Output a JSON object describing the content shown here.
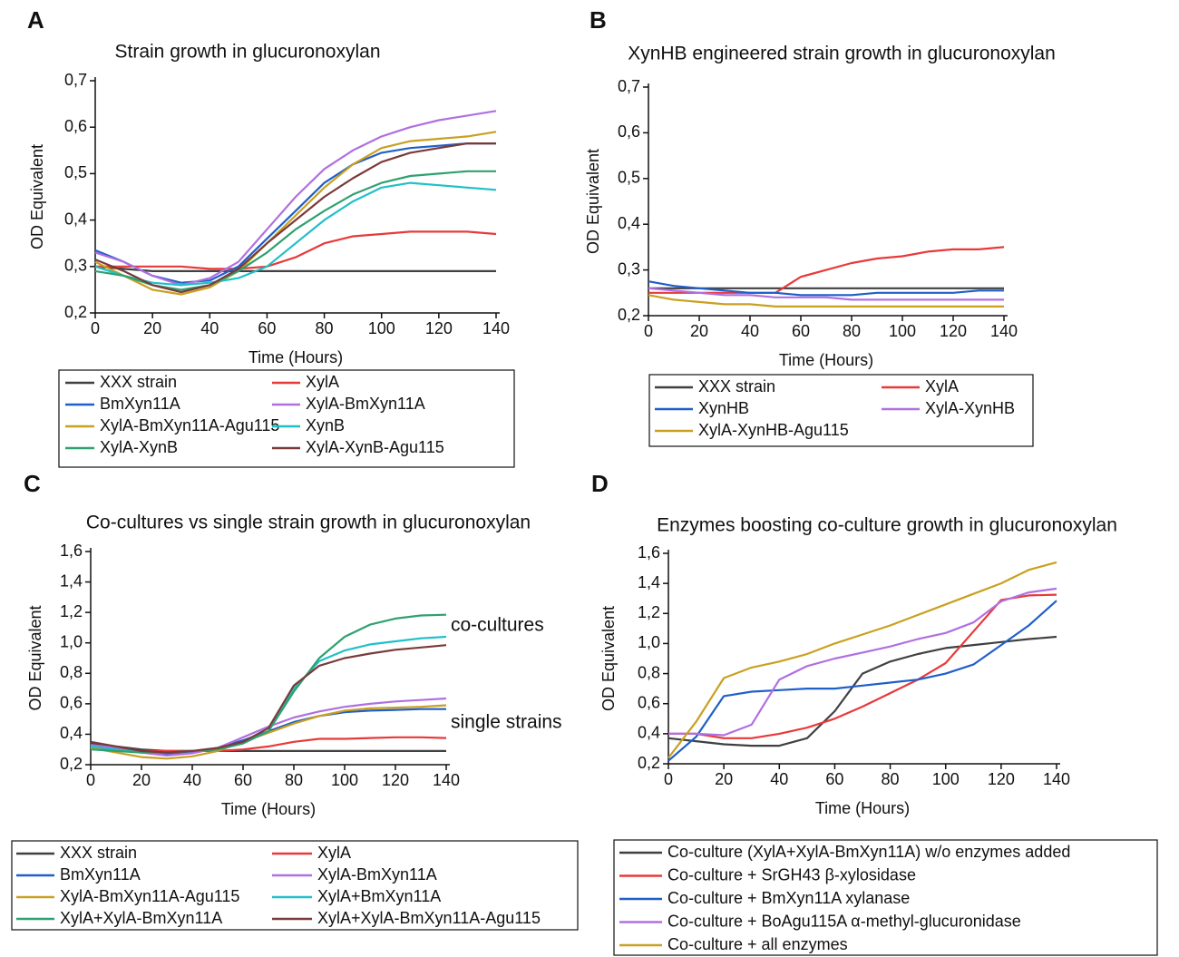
{
  "chart_data": [
    {
      "type": "line",
      "panel_label": "A",
      "title": "Strain growth in glucuronoxylan",
      "x_label": "Time (Hours)",
      "y_label": "OD Equivalent",
      "x": [
        0,
        10,
        20,
        30,
        40,
        50,
        60,
        70,
        80,
        90,
        100,
        110,
        120,
        130,
        140
      ],
      "xlim": [
        0,
        140
      ],
      "xticks": [
        0,
        20,
        40,
        60,
        80,
        100,
        120,
        140
      ],
      "ylim": [
        0.2,
        0.7
      ],
      "yticks": [
        {
          "value": 0.2,
          "label": "0,2"
        },
        {
          "value": 0.3,
          "label": "0,3"
        },
        {
          "value": 0.4,
          "label": "0,4"
        },
        {
          "value": 0.5,
          "label": "0,5"
        },
        {
          "value": 0.6,
          "label": "0,6"
        },
        {
          "value": 0.7,
          "label": "0,7"
        }
      ],
      "series": [
        {
          "name": "XXX strain",
          "color": "#404040",
          "values": [
            0.3,
            0.295,
            0.29,
            0.29,
            0.29,
            0.29,
            0.29,
            0.29,
            0.29,
            0.29,
            0.29,
            0.29,
            0.29,
            0.29,
            0.29
          ]
        },
        {
          "name": "XylA",
          "color": "#e8393a",
          "values": [
            0.3,
            0.3,
            0.3,
            0.3,
            0.295,
            0.295,
            0.3,
            0.32,
            0.35,
            0.365,
            0.37,
            0.375,
            0.375,
            0.375,
            0.37
          ]
        },
        {
          "name": "BmXyn11A",
          "color": "#1f5fc8",
          "values": [
            0.335,
            0.31,
            0.28,
            0.265,
            0.27,
            0.3,
            0.36,
            0.42,
            0.48,
            0.52,
            0.545,
            0.555,
            0.56,
            0.565,
            0.565
          ]
        },
        {
          "name": "XylA-BmXyn11A",
          "color": "#b070e0",
          "values": [
            0.33,
            0.31,
            0.28,
            0.26,
            0.275,
            0.31,
            0.38,
            0.45,
            0.51,
            0.55,
            0.58,
            0.6,
            0.615,
            0.625,
            0.635
          ]
        },
        {
          "name": "XylA-BmXyn11A-Agu115",
          "color": "#c9a020",
          "values": [
            0.31,
            0.28,
            0.25,
            0.24,
            0.255,
            0.29,
            0.35,
            0.41,
            0.47,
            0.52,
            0.555,
            0.57,
            0.575,
            0.58,
            0.59
          ]
        },
        {
          "name": "XynB",
          "color": "#20c0c8",
          "values": [
            0.3,
            0.28,
            0.265,
            0.26,
            0.265,
            0.275,
            0.3,
            0.35,
            0.4,
            0.44,
            0.47,
            0.48,
            0.475,
            0.47,
            0.465
          ]
        },
        {
          "name": "XylA-XynB",
          "color": "#30a070",
          "values": [
            0.29,
            0.28,
            0.26,
            0.25,
            0.26,
            0.29,
            0.33,
            0.38,
            0.42,
            0.455,
            0.48,
            0.495,
            0.5,
            0.505,
            0.505
          ]
        },
        {
          "name": "XylA-XynB-Agu115",
          "color": "#7a3a3a",
          "values": [
            0.315,
            0.29,
            0.26,
            0.245,
            0.26,
            0.295,
            0.35,
            0.4,
            0.45,
            0.49,
            0.525,
            0.545,
            0.555,
            0.565,
            0.565
          ]
        }
      ]
    },
    {
      "type": "line",
      "panel_label": "B",
      "title": "XynHB engineered strain growth in glucuronoxylan",
      "x_label": "Time (Hours)",
      "y_label": "OD Equivalent",
      "x": [
        0,
        10,
        20,
        30,
        40,
        50,
        60,
        70,
        80,
        90,
        100,
        110,
        120,
        130,
        140
      ],
      "xlim": [
        0,
        140
      ],
      "xticks": [
        0,
        20,
        40,
        60,
        80,
        100,
        120,
        140
      ],
      "ylim": [
        0.2,
        0.7
      ],
      "yticks": [
        {
          "value": 0.2,
          "label": "0,2"
        },
        {
          "value": 0.3,
          "label": "0,3"
        },
        {
          "value": 0.4,
          "label": "0,4"
        },
        {
          "value": 0.5,
          "label": "0,5"
        },
        {
          "value": 0.6,
          "label": "0,6"
        },
        {
          "value": 0.7,
          "label": "0,7"
        }
      ],
      "series": [
        {
          "name": "XXX strain",
          "color": "#404040",
          "values": [
            0.26,
            0.26,
            0.26,
            0.26,
            0.26,
            0.26,
            0.26,
            0.26,
            0.26,
            0.26,
            0.26,
            0.26,
            0.26,
            0.26,
            0.26
          ]
        },
        {
          "name": "XylA",
          "color": "#e8393a",
          "values": [
            0.25,
            0.25,
            0.25,
            0.25,
            0.25,
            0.25,
            0.285,
            0.3,
            0.315,
            0.325,
            0.33,
            0.34,
            0.345,
            0.345,
            0.35
          ]
        },
        {
          "name": "XynHB",
          "color": "#1f5fc8",
          "values": [
            0.275,
            0.265,
            0.26,
            0.255,
            0.25,
            0.25,
            0.245,
            0.245,
            0.245,
            0.25,
            0.25,
            0.25,
            0.25,
            0.255,
            0.255
          ]
        },
        {
          "name": "XylA-XynHB",
          "color": "#b070e0",
          "values": [
            0.26,
            0.255,
            0.25,
            0.245,
            0.245,
            0.24,
            0.24,
            0.24,
            0.235,
            0.235,
            0.235,
            0.235,
            0.235,
            0.235,
            0.235
          ]
        },
        {
          "name": "XylA-XynHB-Agu115",
          "color": "#c9a020",
          "values": [
            0.245,
            0.235,
            0.23,
            0.225,
            0.225,
            0.22,
            0.22,
            0.22,
            0.22,
            0.22,
            0.22,
            0.22,
            0.22,
            0.22,
            0.22
          ]
        }
      ]
    },
    {
      "type": "line",
      "panel_label": "C",
      "title": "Co-cultures vs single strain growth in glucuronoxylan",
      "x_label": "Time (Hours)",
      "y_label": "OD Equivalent",
      "annotations": [
        "co-cultures",
        "single strains"
      ],
      "x": [
        0,
        10,
        20,
        30,
        40,
        50,
        60,
        70,
        80,
        90,
        100,
        110,
        120,
        130,
        140
      ],
      "xlim": [
        0,
        140
      ],
      "xticks": [
        0,
        20,
        40,
        60,
        80,
        100,
        120,
        140
      ],
      "ylim": [
        0.2,
        1.6
      ],
      "yticks": [
        {
          "value": 0.2,
          "label": "0,2"
        },
        {
          "value": 0.4,
          "label": "0,4"
        },
        {
          "value": 0.6,
          "label": "0,6"
        },
        {
          "value": 0.8,
          "label": "0,8"
        },
        {
          "value": 1.0,
          "label": "1,0"
        },
        {
          "value": 1.2,
          "label": "1,2"
        },
        {
          "value": 1.4,
          "label": "1,4"
        },
        {
          "value": 1.6,
          "label": "1,6"
        }
      ],
      "series": [
        {
          "name": "XXX strain",
          "color": "#404040",
          "values": [
            0.34,
            0.32,
            0.3,
            0.29,
            0.29,
            0.29,
            0.29,
            0.29,
            0.29,
            0.29,
            0.29,
            0.29,
            0.29,
            0.29,
            0.29
          ]
        },
        {
          "name": "XylA",
          "color": "#e8393a",
          "values": [
            0.31,
            0.3,
            0.29,
            0.29,
            0.29,
            0.29,
            0.3,
            0.32,
            0.35,
            0.37,
            0.37,
            0.375,
            0.38,
            0.38,
            0.375
          ]
        },
        {
          "name": "BmXyn11A",
          "color": "#1f5fc8",
          "values": [
            0.33,
            0.31,
            0.28,
            0.27,
            0.28,
            0.31,
            0.36,
            0.42,
            0.48,
            0.52,
            0.545,
            0.555,
            0.56,
            0.565,
            0.565
          ]
        },
        {
          "name": "XylA-BmXyn11A",
          "color": "#b070e0",
          "values": [
            0.33,
            0.31,
            0.28,
            0.26,
            0.275,
            0.31,
            0.38,
            0.45,
            0.51,
            0.55,
            0.58,
            0.6,
            0.615,
            0.625,
            0.635
          ]
        },
        {
          "name": "XylA-BmXyn11A-Agu115",
          "color": "#c9a020",
          "values": [
            0.31,
            0.28,
            0.25,
            0.24,
            0.255,
            0.29,
            0.35,
            0.41,
            0.47,
            0.52,
            0.555,
            0.57,
            0.575,
            0.58,
            0.59
          ]
        },
        {
          "name": "XylA+BmXyn11A",
          "color": "#20c0c8",
          "values": [
            0.32,
            0.3,
            0.28,
            0.28,
            0.29,
            0.3,
            0.34,
            0.42,
            0.7,
            0.88,
            0.95,
            0.99,
            1.01,
            1.03,
            1.04
          ]
        },
        {
          "name": "XylA+XylA-BmXyn11A",
          "color": "#30a070",
          "values": [
            0.3,
            0.29,
            0.28,
            0.28,
            0.29,
            0.3,
            0.34,
            0.42,
            0.68,
            0.9,
            1.04,
            1.12,
            1.16,
            1.18,
            1.185
          ]
        },
        {
          "name": "XylA+XylA-BmXyn11A-Agu115",
          "color": "#7a3a3a",
          "values": [
            0.35,
            0.32,
            0.29,
            0.28,
            0.29,
            0.31,
            0.35,
            0.44,
            0.72,
            0.85,
            0.9,
            0.93,
            0.955,
            0.97,
            0.985
          ]
        }
      ]
    },
    {
      "type": "line",
      "panel_label": "D",
      "title": "Enzymes boosting co-culture growth in glucuronoxylan",
      "x_label": "Time (Hours)",
      "y_label": "OD Equivalent",
      "x": [
        0,
        10,
        20,
        30,
        40,
        50,
        60,
        70,
        80,
        90,
        100,
        110,
        120,
        130,
        140
      ],
      "xlim": [
        0,
        140
      ],
      "xticks": [
        0,
        20,
        40,
        60,
        80,
        100,
        120,
        140
      ],
      "ylim": [
        0.2,
        1.6
      ],
      "yticks": [
        {
          "value": 0.2,
          "label": "0,2"
        },
        {
          "value": 0.4,
          "label": "0,4"
        },
        {
          "value": 0.6,
          "label": "0,6"
        },
        {
          "value": 0.8,
          "label": "0,8"
        },
        {
          "value": 1.0,
          "label": "1,0"
        },
        {
          "value": 1.2,
          "label": "1,2"
        },
        {
          "value": 1.4,
          "label": "1,4"
        },
        {
          "value": 1.6,
          "label": "1,6"
        }
      ],
      "series": [
        {
          "name": "Co-culture (XylA+XylA-BmXyn11A) w/o enzymes added",
          "color": "#404040",
          "values": [
            0.37,
            0.35,
            0.33,
            0.32,
            0.32,
            0.37,
            0.55,
            0.8,
            0.88,
            0.93,
            0.97,
            0.99,
            1.01,
            1.03,
            1.045
          ]
        },
        {
          "name": "Co-culture  + SrGH43 β-xylosidase",
          "color": "#e8393a",
          "values": [
            0.4,
            0.4,
            0.37,
            0.37,
            0.4,
            0.44,
            0.5,
            0.58,
            0.67,
            0.76,
            0.87,
            1.08,
            1.29,
            1.32,
            1.325
          ]
        },
        {
          "name": "Co-culture  + BmXyn11A xylanase",
          "color": "#1f5fc8",
          "values": [
            0.22,
            0.38,
            0.65,
            0.68,
            0.69,
            0.7,
            0.7,
            0.72,
            0.74,
            0.76,
            0.8,
            0.86,
            0.99,
            1.12,
            1.285
          ]
        },
        {
          "name": "Co-culture  + BoAgu115A α-methyl-glucuronidase",
          "color": "#b070e0",
          "values": [
            0.4,
            0.4,
            0.39,
            0.46,
            0.76,
            0.85,
            0.9,
            0.94,
            0.98,
            1.03,
            1.07,
            1.14,
            1.28,
            1.34,
            1.365
          ]
        },
        {
          "name": "Co-culture + all enzymes",
          "color": "#c9a020",
          "values": [
            0.24,
            0.48,
            0.77,
            0.84,
            0.88,
            0.93,
            1.0,
            1.06,
            1.12,
            1.19,
            1.26,
            1.33,
            1.4,
            1.49,
            1.54
          ]
        }
      ]
    }
  ]
}
